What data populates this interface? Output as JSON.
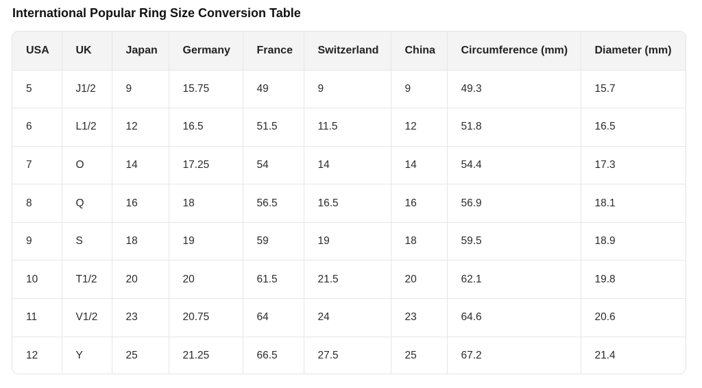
{
  "title": "International Popular Ring Size Conversion Table",
  "table": {
    "headers": [
      "USA",
      "UK",
      "Japan",
      "Germany",
      "France",
      "Switzerland",
      "China",
      "Circumference (mm)",
      "Diameter (mm)"
    ],
    "rows": [
      [
        "5",
        "J1/2",
        "9",
        "15.75",
        "49",
        "9",
        "9",
        "49.3",
        "15.7"
      ],
      [
        "6",
        "L1/2",
        "12",
        "16.5",
        "51.5",
        "11.5",
        "12",
        "51.8",
        "16.5"
      ],
      [
        "7",
        "O",
        "14",
        "17.25",
        "54",
        "14",
        "14",
        "54.4",
        "17.3"
      ],
      [
        "8",
        "Q",
        "16",
        "18",
        "56.5",
        "16.5",
        "16",
        "56.9",
        "18.1"
      ],
      [
        "9",
        "S",
        "18",
        "19",
        "59",
        "19",
        "18",
        "59.5",
        "18.9"
      ],
      [
        "10",
        "T1/2",
        "20",
        "20",
        "61.5",
        "21.5",
        "20",
        "62.1",
        "19.8"
      ],
      [
        "11",
        "V1/2",
        "23",
        "20.75",
        "64",
        "24",
        "23",
        "64.6",
        "20.6"
      ],
      [
        "12",
        "Y",
        "25",
        "21.25",
        "66.5",
        "27.5",
        "25",
        "67.2",
        "21.4"
      ]
    ]
  }
}
